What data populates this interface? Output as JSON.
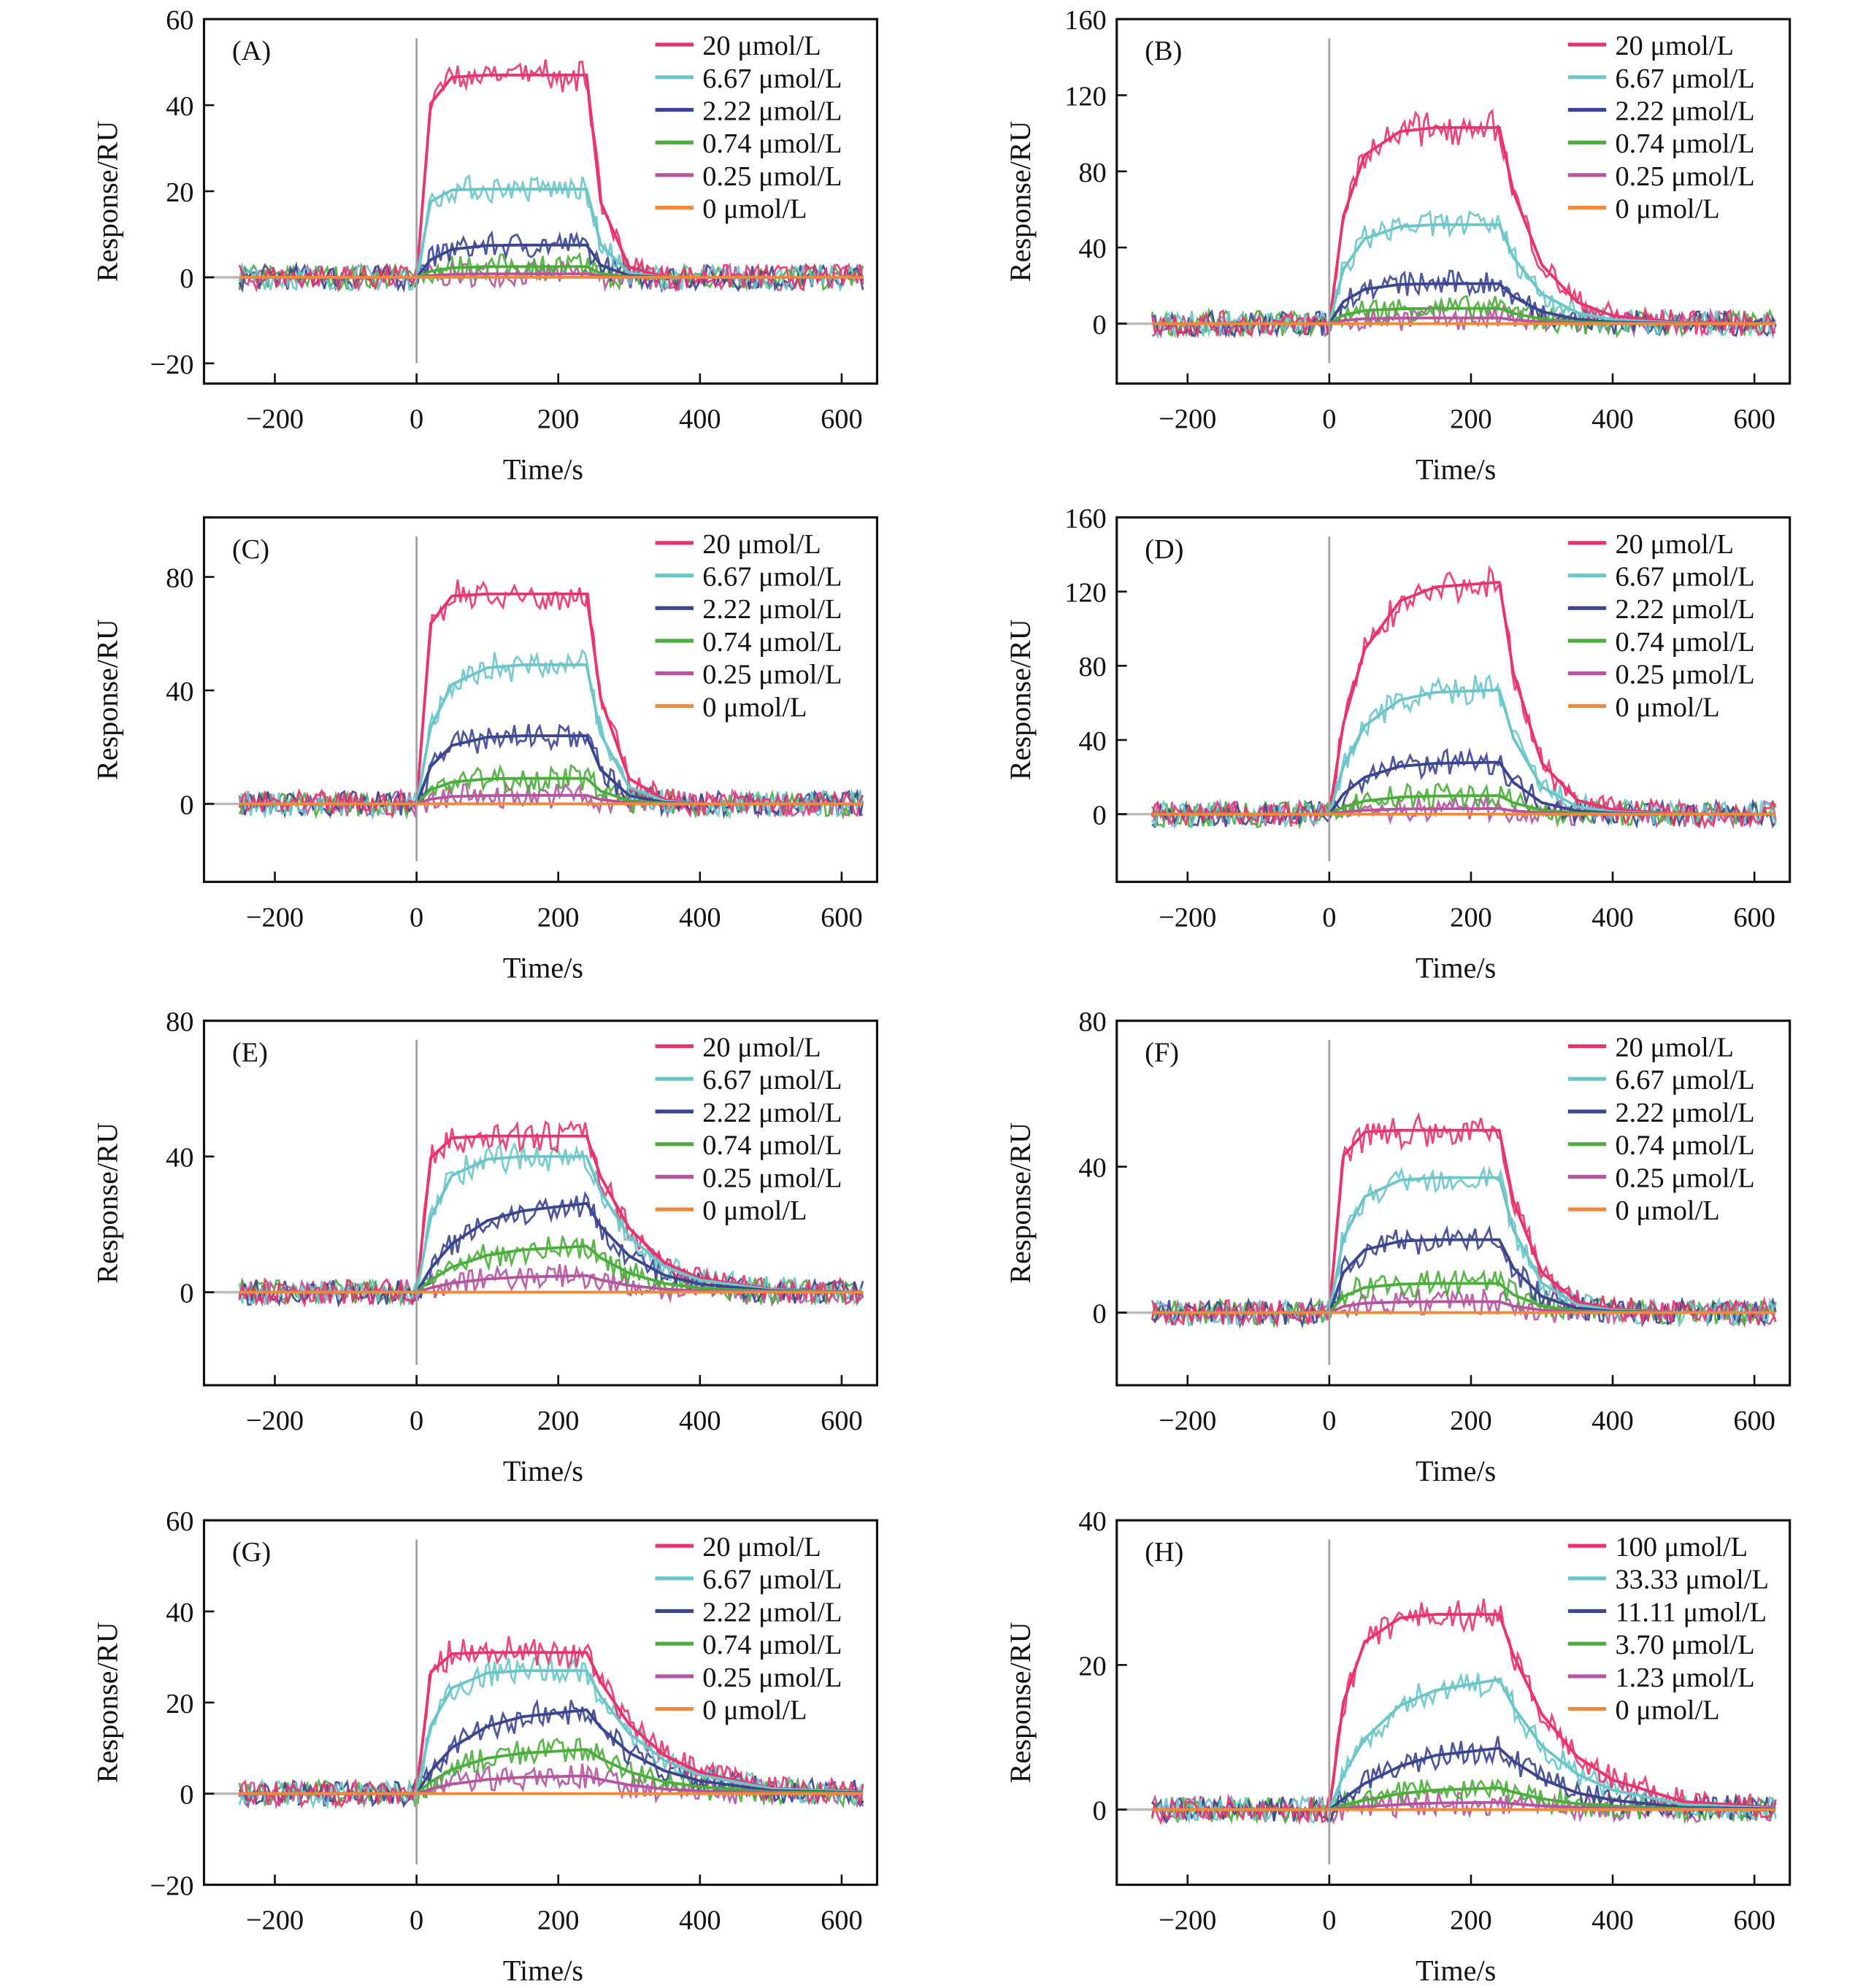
{
  "colors": {
    "s0": "#e8336d",
    "s1": "#6cc5c8",
    "s2": "#3b4591",
    "s3": "#4aae3a",
    "s4": "#b5559e",
    "s5": "#f08a3a",
    "injection": "#a39d9d",
    "frame": "#111111"
  },
  "chart_data": [
    {
      "type": "line",
      "panel": "(A)",
      "xlabel": "Time/s",
      "ylabel": "Response/RU",
      "xlim": [
        -300,
        650
      ],
      "ylim": [
        -24.7,
        60
      ],
      "xticks": [
        -200,
        0,
        200,
        400,
        600
      ],
      "yticks": [
        -20,
        0,
        20,
        40,
        60
      ],
      "legend": "top-right",
      "grid": false,
      "x": [
        -250,
        0,
        20,
        50,
        100,
        150,
        240,
        260,
        300,
        350,
        400,
        500,
        630
      ],
      "series": [
        {
          "name": "20 μmol/L",
          "values": [
            0,
            0,
            40.4,
            46.5,
            47,
            47,
            47,
            17.4,
            2.4,
            0,
            0,
            0,
            0
          ]
        },
        {
          "name": "6.67 μmol/L",
          "values": [
            0,
            0,
            17.6,
            20.3,
            20.5,
            20.5,
            20.5,
            7.6,
            1,
            0,
            0,
            0,
            0
          ]
        },
        {
          "name": "2.22 μmol/L",
          "values": [
            0,
            0,
            4.1,
            6.5,
            7.4,
            7.5,
            7.5,
            2.8,
            0.4,
            0,
            0,
            0,
            0
          ]
        },
        {
          "name": "0.74 μmol/L",
          "values": [
            0,
            0,
            1.4,
            2.2,
            2.5,
            2.5,
            2.5,
            0.9,
            0.1,
            0,
            0,
            0,
            0
          ]
        },
        {
          "name": "0.25 μmol/L",
          "values": [
            0,
            0,
            0.4,
            0.7,
            0.8,
            0.8,
            0.8,
            0.3,
            0,
            0,
            0,
            0,
            0
          ]
        },
        {
          "name": "0 μmol/L",
          "values": [
            0,
            0,
            0,
            0,
            0,
            0,
            0,
            0,
            0,
            0,
            0,
            0,
            0
          ]
        }
      ]
    },
    {
      "type": "line",
      "panel": "(B)",
      "xlabel": "Time/s",
      "ylabel": "Response/RU",
      "xlim": [
        -300,
        650
      ],
      "ylim": [
        -31.5,
        160
      ],
      "xticks": [
        -200,
        0,
        200,
        400,
        600
      ],
      "yticks": [
        0,
        40,
        80,
        120,
        160
      ],
      "legend": "top-right",
      "grid": false,
      "x": [
        -250,
        0,
        20,
        50,
        100,
        150,
        240,
        260,
        300,
        350,
        400,
        500,
        630
      ],
      "series": [
        {
          "name": "20 μmol/L",
          "values": [
            0,
            0,
            56.7,
            88.6,
            101,
            103,
            103,
            69,
            30.9,
            11.3,
            4.1,
            0.5,
            0
          ]
        },
        {
          "name": "6.67 μmol/L",
          "values": [
            0,
            0,
            28.6,
            44.7,
            51,
            52,
            52,
            34.8,
            15.6,
            5.7,
            2.1,
            0.3,
            0
          ]
        },
        {
          "name": "2.22 μmol/L",
          "values": [
            0,
            0,
            11.6,
            18.1,
            20.6,
            21,
            21,
            14.1,
            6.3,
            2.3,
            0.8,
            0.1,
            0
          ]
        },
        {
          "name": "0.74 μmol/L",
          "values": [
            0,
            0,
            4.4,
            6.9,
            7.8,
            8,
            8,
            5.4,
            2.4,
            0.9,
            0.3,
            0,
            0
          ]
        },
        {
          "name": "0.25 μmol/L",
          "values": [
            0,
            0,
            1.7,
            2.6,
            2.9,
            3,
            3,
            2,
            0.9,
            0.3,
            0.1,
            0,
            0
          ]
        },
        {
          "name": "0 μmol/L",
          "values": [
            0,
            0,
            0,
            0,
            0,
            0,
            0,
            0,
            0,
            0,
            0,
            0,
            0
          ]
        }
      ]
    },
    {
      "type": "line",
      "panel": "(C)",
      "xlabel": "Time/s",
      "ylabel": "Response/RU",
      "xlim": [
        -300,
        650
      ],
      "ylim": [
        -27.5,
        101
      ],
      "xticks": [
        -200,
        0,
        200,
        400,
        600
      ],
      "yticks": [
        0,
        40,
        80
      ],
      "legend": "top-right",
      "grid": false,
      "x": [
        -250,
        0,
        20,
        50,
        100,
        150,
        240,
        260,
        300,
        350,
        400,
        500,
        630
      ],
      "series": [
        {
          "name": "20 μmol/L",
          "values": [
            0,
            0,
            63.6,
            73.3,
            74,
            74,
            74,
            37,
            8.9,
            1.5,
            0,
            0,
            0
          ]
        },
        {
          "name": "6.67 μmol/L",
          "values": [
            0,
            0,
            27,
            42.1,
            48,
            49,
            49,
            24.5,
            5.9,
            1,
            0,
            0,
            0
          ]
        },
        {
          "name": "2.22 μmol/L",
          "values": [
            0,
            0,
            13.2,
            20.6,
            23.5,
            24,
            24,
            12,
            2.9,
            0.5,
            0,
            0,
            0
          ]
        },
        {
          "name": "0.74 μmol/L",
          "values": [
            0,
            0,
            5,
            7.7,
            8.8,
            9,
            9,
            4.5,
            1.1,
            0.2,
            0,
            0,
            0
          ]
        },
        {
          "name": "0.25 μmol/L",
          "values": [
            0,
            0,
            1.7,
            2.6,
            2.9,
            3,
            3,
            1.5,
            0.4,
            0,
            0,
            0,
            0
          ]
        },
        {
          "name": "0 μmol/L",
          "values": [
            0,
            0,
            0,
            0,
            0,
            0,
            0,
            0,
            0,
            0,
            0,
            0,
            0
          ]
        }
      ]
    },
    {
      "type": "line",
      "panel": "(D)",
      "xlabel": "Time/s",
      "ylabel": "Response/RU",
      "xlim": [
        -300,
        650
      ],
      "ylim": [
        -36.5,
        160
      ],
      "xticks": [
        -200,
        0,
        200,
        400,
        600
      ],
      "yticks": [
        0,
        40,
        80,
        120,
        160
      ],
      "legend": "top-right",
      "grid": false,
      "x": [
        -250,
        0,
        20,
        50,
        100,
        150,
        240,
        260,
        300,
        350,
        400,
        500,
        630
      ],
      "series": [
        {
          "name": "20 μmol/L",
          "values": [
            0,
            0,
            49,
            89,
            115,
            122.5,
            125,
            76,
            27.5,
            7.5,
            2.5,
            0,
            0
          ]
        },
        {
          "name": "6.67 μmol/L",
          "values": [
            0,
            0,
            26,
            47.6,
            61.6,
            65.7,
            67,
            40.9,
            14.7,
            4,
            1.3,
            0,
            0
          ]
        },
        {
          "name": "2.22 μmol/L",
          "values": [
            0,
            0,
            10.9,
            19.9,
            25.8,
            27.4,
            28,
            17.1,
            6.2,
            1.7,
            0.6,
            0,
            0
          ]
        },
        {
          "name": "0.74 μmol/L",
          "values": [
            0,
            0,
            3.9,
            7.1,
            9.2,
            9.8,
            10,
            6.1,
            2.2,
            0.6,
            0.2,
            0,
            0
          ]
        },
        {
          "name": "0.25 μmol/L",
          "values": [
            0,
            0,
            1.2,
            2.1,
            2.8,
            2.9,
            3,
            1.8,
            0.7,
            0.2,
            0,
            0,
            0
          ]
        },
        {
          "name": "0 μmol/L",
          "values": [
            0,
            0,
            0,
            0,
            0,
            0,
            0,
            0,
            0,
            0,
            0,
            0,
            0
          ]
        }
      ]
    },
    {
      "type": "line",
      "panel": "(E)",
      "xlabel": "Time/s",
      "ylabel": "Response/RU",
      "xlim": [
        -300,
        650
      ],
      "ylim": [
        -27.4,
        80
      ],
      "xticks": [
        -200,
        0,
        200,
        400,
        600
      ],
      "yticks": [
        0,
        40,
        80
      ],
      "legend": "top-right",
      "grid": false,
      "x": [
        -250,
        0,
        20,
        50,
        100,
        150,
        240,
        260,
        300,
        350,
        400,
        500,
        630
      ],
      "series": [
        {
          "name": "20 μmol/L",
          "values": [
            0,
            0,
            39.6,
            45.5,
            46,
            46,
            46,
            34,
            18.9,
            8.7,
            4.1,
            0.9,
            0
          ]
        },
        {
          "name": "6.67 μmol/L",
          "values": [
            0,
            0,
            22,
            34.4,
            39.2,
            40,
            40,
            29.6,
            16.4,
            7.6,
            3.6,
            0.8,
            0
          ]
        },
        {
          "name": "2.22 μmol/L",
          "values": [
            0,
            0,
            7,
            14.3,
            21.1,
            24,
            26.2,
            19.4,
            10.7,
            5,
            2.4,
            0.5,
            0
          ]
        },
        {
          "name": "0.74 μmol/L",
          "values": [
            0,
            0,
            3.6,
            7.4,
            10.9,
            12.5,
            13.6,
            10.1,
            5.6,
            2.6,
            1.2,
            0.3,
            0
          ]
        },
        {
          "name": "0.25 μmol/L",
          "values": [
            0,
            0,
            1.3,
            2.7,
            3.9,
            4.5,
            4.9,
            3.6,
            2,
            0.9,
            0.4,
            0.1,
            0
          ]
        },
        {
          "name": "0 μmol/L",
          "values": [
            0,
            0,
            0,
            0,
            0,
            0,
            0,
            0,
            0,
            0,
            0,
            0,
            0
          ]
        }
      ]
    },
    {
      "type": "line",
      "panel": "(F)",
      "xlabel": "Time/s",
      "ylabel": "Response/RU",
      "xlim": [
        -300,
        650
      ],
      "ylim": [
        -19.9,
        80
      ],
      "xticks": [
        -200,
        0,
        200,
        400,
        600
      ],
      "yticks": [
        0,
        40,
        80
      ],
      "legend": "top-right",
      "grid": false,
      "x": [
        -250,
        0,
        20,
        50,
        100,
        150,
        240,
        260,
        300,
        350,
        400,
        500,
        630
      ],
      "series": [
        {
          "name": "20 μmol/L",
          "values": [
            0,
            0,
            43,
            49.5,
            50,
            50,
            50,
            30.5,
            11,
            3,
            1,
            0,
            0
          ]
        },
        {
          "name": "6.67 μmol/L",
          "values": [
            0,
            0,
            20.4,
            31.8,
            36.3,
            37,
            37,
            22.6,
            8.1,
            2.2,
            0.7,
            0,
            0
          ]
        },
        {
          "name": "2.22 μmol/L",
          "values": [
            0,
            0,
            11,
            17.2,
            19.6,
            20,
            20,
            12.2,
            4.4,
            1.2,
            0.4,
            0,
            0
          ]
        },
        {
          "name": "0.74 μmol/L",
          "values": [
            0,
            0,
            4.4,
            6.9,
            7.8,
            8,
            8,
            4.9,
            1.8,
            0.5,
            0.2,
            0,
            0
          ]
        },
        {
          "name": "0.25 μmol/L",
          "values": [
            0,
            0,
            1.7,
            2.6,
            2.9,
            3,
            3,
            1.8,
            0.7,
            0.2,
            0,
            0,
            0
          ]
        },
        {
          "name": "0 μmol/L",
          "values": [
            0,
            0,
            0,
            0,
            0,
            0,
            0,
            0,
            0,
            0,
            0,
            0,
            0
          ]
        }
      ]
    },
    {
      "type": "line",
      "panel": "(G)",
      "xlabel": "Time/s",
      "ylabel": "Response/RU",
      "xlim": [
        -300,
        650
      ],
      "ylim": [
        -20,
        60
      ],
      "xticks": [
        -200,
        0,
        200,
        400,
        600
      ],
      "yticks": [
        -20,
        0,
        20,
        40,
        60
      ],
      "legend": "top-right",
      "grid": false,
      "x": [
        -250,
        0,
        20,
        50,
        100,
        150,
        240,
        260,
        300,
        350,
        400,
        500,
        630
      ],
      "series": [
        {
          "name": "20 μmol/L",
          "values": [
            0,
            0,
            26.7,
            30.7,
            31,
            31,
            31,
            24.5,
            15.2,
            8.4,
            4.7,
            1.2,
            0.3
          ]
        },
        {
          "name": "6.67 μmol/L",
          "values": [
            0,
            0,
            14.9,
            23.2,
            26.5,
            27,
            27,
            21.3,
            13.2,
            7.3,
            4.1,
            1.1,
            0.3
          ]
        },
        {
          "name": "2.22 μmol/L",
          "values": [
            0,
            0,
            4.9,
            10.1,
            14.8,
            16.9,
            18.4,
            14.5,
            9,
            5,
            2.8,
            0.7,
            0.2
          ]
        },
        {
          "name": "0.74 μmol/L",
          "values": [
            0,
            0,
            2.6,
            5.3,
            7.8,
            8.9,
            9.7,
            7.7,
            4.8,
            2.6,
            1.5,
            0.4,
            0.1
          ]
        },
        {
          "name": "0.25 μmol/L",
          "values": [
            0,
            0,
            1,
            2.1,
            3.1,
            3.6,
            3.9,
            3.1,
            1.9,
            1,
            0.6,
            0.2,
            0
          ]
        },
        {
          "name": "0 μmol/L",
          "values": [
            0,
            0,
            0,
            0,
            0,
            0,
            0,
            0,
            0,
            0,
            0,
            0,
            0
          ]
        }
      ]
    },
    {
      "type": "line",
      "panel": "(H)",
      "xlabel": "Time/s",
      "ylabel": "Response/RU",
      "xlim": [
        -300,
        650
      ],
      "ylim": [
        -10.4,
        40
      ],
      "xticks": [
        -200,
        0,
        200,
        400,
        600
      ],
      "yticks": [
        0,
        20,
        40
      ],
      "legend": "top-right",
      "grid": false,
      "x": [
        -250,
        0,
        20,
        50,
        100,
        150,
        240,
        260,
        300,
        350,
        400,
        500,
        630
      ],
      "series": [
        {
          "name": "100 μmol/L",
          "values": [
            0,
            0,
            14.9,
            23.2,
            26.5,
            27,
            27,
            21.3,
            13.2,
            7.3,
            4.1,
            1.1,
            0.3
          ]
        },
        {
          "name": "33.33 μmol/L",
          "values": [
            0,
            0,
            4.8,
            9.8,
            14.4,
            16.5,
            18,
            14.2,
            8.8,
            4.9,
            2.7,
            0.7,
            0.2
          ]
        },
        {
          "name": "11.11 μmol/L",
          "values": [
            0,
            0,
            1.5,
            3.6,
            6,
            7.5,
            8.5,
            6.7,
            4.2,
            2.3,
            1.3,
            0.3,
            0.1
          ]
        },
        {
          "name": "3.70 μmol/L",
          "values": [
            0,
            0,
            0.6,
            1.3,
            2.2,
            2.7,
            3,
            2.4,
            1.5,
            0.8,
            0.5,
            0.1,
            0
          ]
        },
        {
          "name": "1.23 μmol/L",
          "values": [
            0,
            0,
            0.2,
            0.4,
            0.7,
            0.9,
            1,
            0.8,
            0.5,
            0.3,
            0.2,
            0,
            0
          ]
        },
        {
          "name": "0 μmol/L",
          "values": [
            0,
            0,
            0,
            0,
            0,
            0,
            0,
            0,
            0,
            0,
            0,
            0,
            0
          ]
        }
      ]
    }
  ]
}
